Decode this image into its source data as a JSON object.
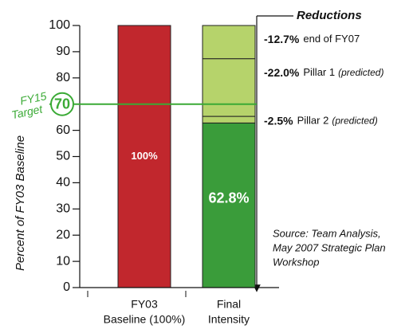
{
  "chart_data": {
    "type": "bar",
    "ylabel": "Percent of FY03 Baseline",
    "ylim": [
      0,
      100
    ],
    "yticks": [
      0,
      10,
      20,
      30,
      40,
      50,
      60,
      70,
      80,
      90,
      100
    ],
    "categories": [
      [
        "FY03",
        "Baseline (100%)"
      ],
      [
        "Final",
        "Intensity"
      ]
    ],
    "values": [
      100,
      62.8
    ],
    "value_labels": [
      "100%",
      "62.8%"
    ],
    "colors": [
      "#c1272d",
      "#3a9c3a"
    ],
    "reductions_title": "Reductions",
    "reductions": {
      "color": "#b6d36b",
      "values": [
        -12.7,
        -22.0,
        -2.5
      ],
      "value_labels": [
        "-12.7%",
        "-22.0%",
        "-2.5%"
      ],
      "names": [
        "end of FY07",
        "Pillar 1",
        "Pillar 2"
      ],
      "notes": [
        null,
        "(predicted)",
        "(predicted)"
      ]
    },
    "target": {
      "value": 70,
      "label": "70",
      "text": [
        "FY15",
        "Target"
      ],
      "color": "#3aaa35"
    },
    "source": [
      "Source: Team Analysis,",
      "May 2007 Strategic Plan",
      "Workshop"
    ]
  }
}
